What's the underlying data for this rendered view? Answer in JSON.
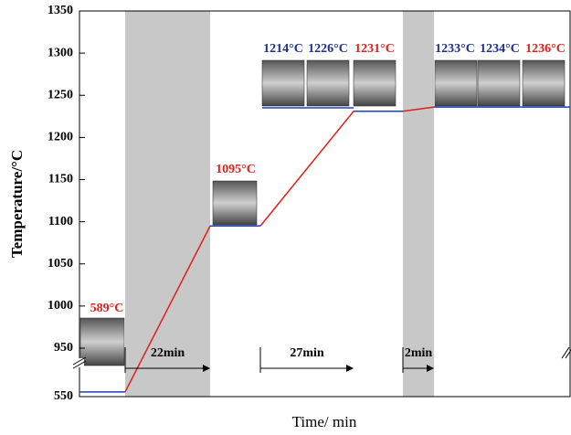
{
  "chart_data": {
    "type": "line",
    "y_label": "Temperature/°C",
    "x_label": "Time/ min",
    "ylim": [
      550,
      1350
    ],
    "yticks": [
      550,
      950,
      1000,
      1050,
      1100,
      1150,
      1200,
      1250,
      1300,
      1350
    ],
    "axis_break": true,
    "categories": [
      null,
      null,
      null,
      null,
      null,
      null,
      null,
      null
    ],
    "series": [
      {
        "values": [
          589,
          589,
          1095,
          1095,
          1231,
          1231,
          1236,
          1236
        ],
        "hold_color": "#1f3fbf",
        "ramp_color": "#e0201b"
      }
    ],
    "durations": [
      "22min",
      "27min",
      "2min"
    ],
    "annotations": [
      {
        "text": "589°C",
        "color": "#e0201b"
      },
      {
        "text": "1095°C",
        "color": "#e0201b"
      },
      {
        "text": "1214°C",
        "color": "#1f2f8f"
      },
      {
        "text": "1226°C",
        "color": "#1f2f8f"
      },
      {
        "text": "1231°C",
        "color": "#e0201b"
      },
      {
        "text": "1233°C",
        "color": "#1f2f8f"
      },
      {
        "text": "1234°C",
        "color": "#1f2f8f"
      },
      {
        "text": "1236°C",
        "color": "#e0201b"
      }
    ]
  }
}
